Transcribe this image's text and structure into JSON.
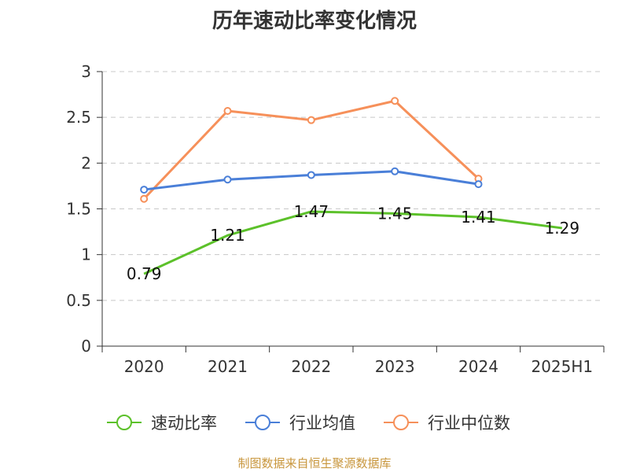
{
  "chart_data": {
    "type": "line",
    "title": "历年速动比率变化情况",
    "categories": [
      "2020",
      "2021",
      "2022",
      "2023",
      "2024",
      "2025H1"
    ],
    "ylim": [
      0,
      3
    ],
    "yticks": [
      "0",
      "0.5",
      "1",
      "1.5",
      "2",
      "2.5",
      "3"
    ],
    "grid": true,
    "legend_position": "bottom",
    "series": [
      {
        "name": "速动比率",
        "color": "#5cc12a",
        "values": [
          0.79,
          1.21,
          1.47,
          1.45,
          1.41,
          1.29
        ],
        "labels": [
          "0.79",
          "1.21",
          "1.47",
          "1.45",
          "1.41",
          "1.29"
        ]
      },
      {
        "name": "行业均值",
        "color": "#4a7fd8",
        "values": [
          1.71,
          1.82,
          1.87,
          1.91,
          1.77,
          null
        ]
      },
      {
        "name": "行业中位数",
        "color": "#f6905a",
        "values": [
          1.61,
          2.57,
          2.47,
          2.68,
          1.83,
          null
        ]
      }
    ]
  },
  "source_note": "制图数据来自恒生聚源数据库"
}
